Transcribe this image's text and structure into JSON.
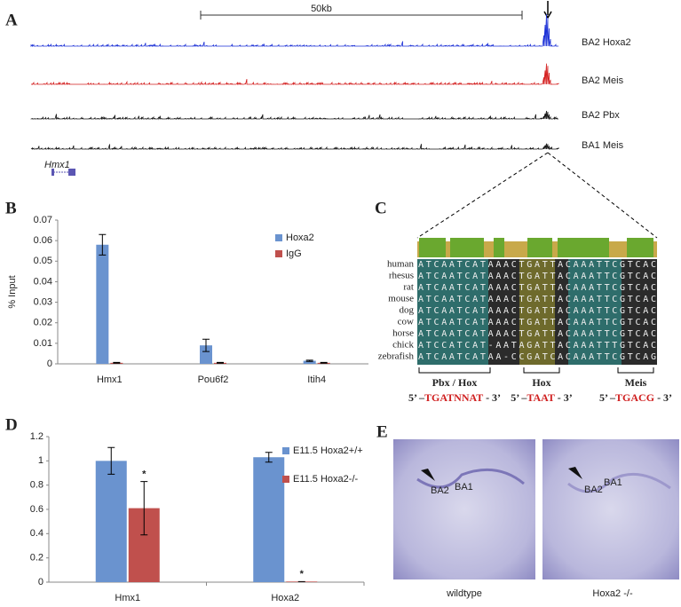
{
  "panels": {
    "a": {
      "letter": "A",
      "scale": "50kb",
      "gene": "Hmx1",
      "tracks": [
        {
          "label": "BA2 Hoxa2",
          "color": "#1a2fd6"
        },
        {
          "label": "BA2 Meis",
          "color": "#d41f1f"
        },
        {
          "label": "BA2 Pbx",
          "color": "#111111"
        },
        {
          "label": "BA1 Meis",
          "color": "#111111"
        }
      ]
    },
    "b": {
      "letter": "B"
    },
    "c": {
      "letter": "C",
      "rows": [
        {
          "species": "human",
          "seq": "ATCAATCATAAACTGATTACAAATTCGTCAC"
        },
        {
          "species": "rhesus",
          "seq": "ATCAATCATAAACTGATTACAAATTCGTCAC"
        },
        {
          "species": "rat",
          "seq": "ATCAATCATAAACTGATTACAAATTCGTCAC"
        },
        {
          "species": "mouse",
          "seq": "ATCAATCATAAACTGATTACAAATTCGTCAC"
        },
        {
          "species": "dog",
          "seq": "ATCAATCATAAACTGATTACAAATTCGTCAC"
        },
        {
          "species": "cow",
          "seq": "ATCAATCATAAACTGATTACAAATTCGTCAC"
        },
        {
          "species": "horse",
          "seq": "ATCAATCATAAACTGATTACAAATTCGTCAC"
        },
        {
          "species": "chick",
          "seq": "ATCCATCAT-AATAGATTACAAATTTGTCAC"
        },
        {
          "species": "zebrafish",
          "seq": "ATCAATCATAA-CCGATCACAAATTCGTCAG"
        }
      ],
      "sites": [
        {
          "name": "Pbx / Hox",
          "pre": "5’ –",
          "motif": "TGATNNAT",
          "post": " - 3’"
        },
        {
          "name": "Hox",
          "pre": "5’ –",
          "motif": "TAAT",
          "post": " - 3’"
        },
        {
          "name": "Meis",
          "pre": "5’ –",
          "motif": "TGACG",
          "post": " - 3’"
        }
      ]
    },
    "d": {
      "letter": "D"
    },
    "e": {
      "letter": "E",
      "ba2": "BA2",
      "ba1": "BA1",
      "captions": [
        "wildtype",
        "Hoxa2 -/-"
      ]
    }
  },
  "chart_data": [
    {
      "type": "bar",
      "ylabel": "% Input",
      "categories": [
        "Hmx1",
        "Pou6f2",
        "Itih4"
      ],
      "series": [
        {
          "name": "Hoxa2",
          "color": "#6a93cf",
          "values": [
            0.058,
            0.009,
            0.0015
          ],
          "errors": [
            0.005,
            0.003,
            0.0003
          ]
        },
        {
          "name": "IgG",
          "color": "#c0504d",
          "values": [
            0.0005,
            0.0005,
            0.0005
          ],
          "errors": [
            0.0002,
            0.0002,
            0.0002
          ]
        }
      ],
      "ylim": [
        0,
        0.07
      ],
      "yticks": [
        0,
        0.01,
        0.02,
        0.03,
        0.04,
        0.05,
        0.06,
        0.07
      ]
    },
    {
      "type": "bar",
      "categories": [
        "Hmx1",
        "Hoxa2"
      ],
      "series": [
        {
          "name": "E11.5 Hoxa2+/+",
          "color": "#6a93cf",
          "values": [
            1.0,
            1.03
          ],
          "errors": [
            0.11,
            0.04
          ]
        },
        {
          "name": "E11.5 Hoxa2-/-",
          "color": "#c0504d",
          "values": [
            0.61,
            0.005
          ],
          "errors": [
            0.22,
            0
          ]
        }
      ],
      "annotations": [
        {
          "text": "*",
          "category": 0,
          "series": 1
        },
        {
          "text": "*",
          "category": 1,
          "series": 1
        }
      ],
      "ylim": [
        0,
        1.2
      ],
      "yticks": [
        0,
        {
          "value": 0.2,
          "label": "0.2"
        },
        {
          "value": 0.4,
          "label": "0.4"
        },
        {
          "value": 0.6,
          "label": "0.6"
        },
        {
          "value": 0.8,
          "label": "0.8"
        },
        1,
        {
          "value": 1.2,
          "label": "1.2"
        }
      ]
    }
  ]
}
